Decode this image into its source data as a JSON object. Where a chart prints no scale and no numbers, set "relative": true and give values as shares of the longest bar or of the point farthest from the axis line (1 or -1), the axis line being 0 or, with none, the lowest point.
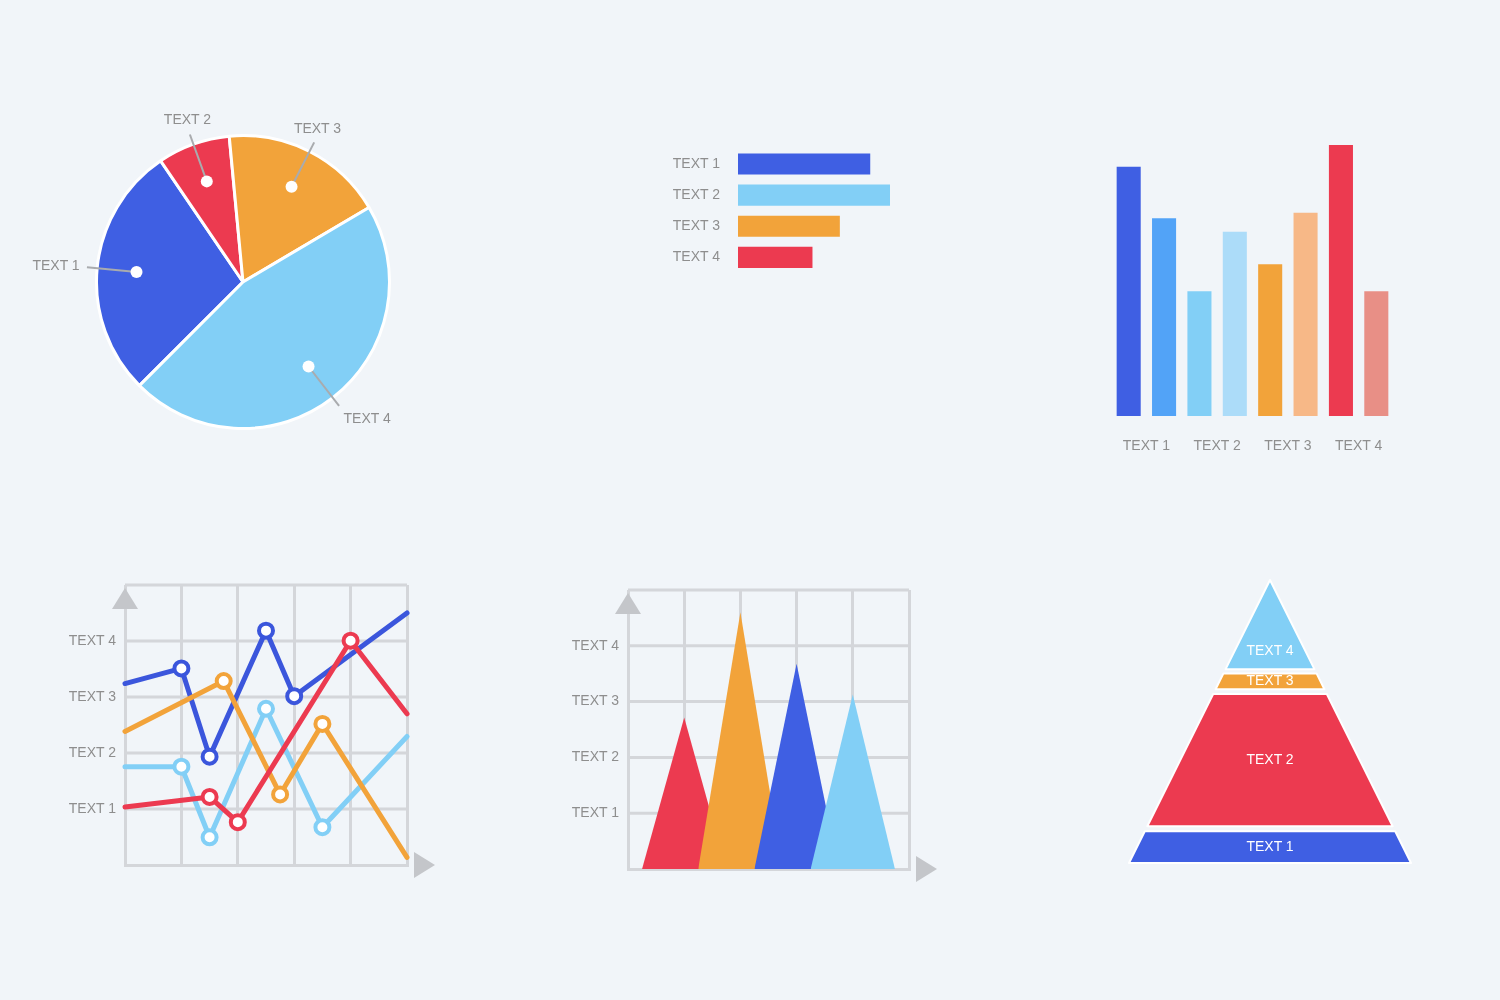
{
  "chart_data": [
    {
      "type": "pie",
      "categories": [
        "TEXT 1",
        "TEXT 2",
        "TEXT 3",
        "TEXT 4"
      ],
      "values": [
        28,
        8,
        18,
        46
      ],
      "colors": [
        "#3f5fe3",
        "#ec3a50",
        "#f2a33a",
        "#82cff6"
      ]
    },
    {
      "type": "bar",
      "orientation": "horizontal",
      "relative": true,
      "categories": [
        "TEXT 1",
        "TEXT 2",
        "TEXT 3",
        "TEXT 4"
      ],
      "values": [
        0.87,
        1,
        0.67,
        0.49
      ],
      "colors": [
        "#3f5fe3",
        "#82cff6",
        "#f2a33a",
        "#ec3a50"
      ]
    },
    {
      "type": "bar",
      "relative": true,
      "categories": [
        "TEXT 1",
        "TEXT 2",
        "TEXT 3",
        "TEXT 4"
      ],
      "series": [
        {
          "values": [
            0.92,
            0.46,
            0.56,
            1
          ],
          "colors": [
            "#3f5fe3",
            "#82cff6",
            "#f2a33a",
            "#ec3a50"
          ]
        },
        {
          "values": [
            0.73,
            0.68,
            0.75,
            0.46
          ],
          "colors": [
            "#52a3f7",
            "#acdcf9",
            "#f7b887",
            "#e88f86"
          ]
        }
      ]
    },
    {
      "type": "line",
      "relative": true,
      "categories": [
        null,
        null,
        null,
        null,
        null,
        null,
        null,
        null,
        null,
        null,
        null,
        null,
        null,
        null,
        null,
        null,
        null,
        null,
        null,
        null,
        null
      ],
      "annotations": [
        "TEXT 1",
        "TEXT 2",
        "TEXT 3",
        "TEXT 4"
      ],
      "tick_labels": false,
      "grid": true,
      "marker": "circle",
      "series": [
        {
          "color": "#3b56dc",
          "values": [
            0.72,
            null,
            null,
            null,
            0.78,
            null,
            0.43,
            null,
            null,
            null,
            0.93,
            null,
            0.67,
            null,
            null,
            null,
            null,
            null,
            null,
            null,
            1
          ]
        },
        {
          "color": "#82cff6",
          "values": [
            0.39,
            null,
            null,
            null,
            0.39,
            null,
            0.11,
            null,
            null,
            null,
            0.62,
            null,
            null,
            null,
            0.15,
            null,
            null,
            null,
            null,
            null,
            0.51
          ]
        },
        {
          "color": "#f2a33a",
          "values": [
            0.53,
            null,
            null,
            null,
            null,
            null,
            null,
            0.73,
            null,
            null,
            null,
            0.28,
            null,
            null,
            0.56,
            null,
            null,
            null,
            null,
            null,
            0.03
          ]
        },
        {
          "color": "#ec3a50",
          "values": [
            0.23,
            null,
            null,
            null,
            null,
            null,
            0.27,
            null,
            0.17,
            null,
            null,
            null,
            null,
            null,
            null,
            null,
            0.89,
            null,
            null,
            null,
            0.6
          ]
        }
      ]
    },
    {
      "type": "area",
      "relative": true,
      "categories": [
        null,
        null,
        null,
        null,
        null,
        null,
        null,
        null,
        null,
        null,
        null,
        null,
        null,
        null,
        null,
        null,
        null,
        null,
        null,
        null,
        null
      ],
      "annotations": [
        "TEXT 1",
        "TEXT 2",
        "TEXT 3",
        "TEXT 4"
      ],
      "tick_labels": false,
      "grid": true,
      "series": [
        {
          "color": "#ec3a50",
          "values": [
            null,
            0,
            null,
            null,
            0.59,
            null,
            null,
            0,
            null,
            null,
            null,
            null,
            null,
            null,
            null,
            null,
            null,
            null,
            null,
            null,
            null
          ]
        },
        {
          "color": "#f2a33a",
          "values": [
            null,
            null,
            null,
            null,
            null,
            0,
            null,
            null,
            1,
            null,
            null,
            0,
            null,
            null,
            null,
            null,
            null,
            null,
            null,
            null,
            null
          ]
        },
        {
          "color": "#3f5fe3",
          "values": [
            null,
            null,
            null,
            null,
            null,
            null,
            null,
            null,
            null,
            0,
            null,
            null,
            0.8,
            null,
            null,
            0,
            null,
            null,
            null,
            null,
            null
          ]
        },
        {
          "color": "#82cff6",
          "values": [
            null,
            null,
            null,
            null,
            null,
            null,
            null,
            null,
            null,
            null,
            null,
            null,
            null,
            0,
            null,
            null,
            0.68,
            null,
            null,
            0,
            null
          ]
        }
      ]
    },
    {
      "type": "other",
      "categories": [
        "TEXT 4",
        "TEXT 3",
        "TEXT 2",
        "TEXT 1"
      ],
      "colors": [
        "#82cff6",
        "#f2a33a",
        "#ec3a50",
        "#3f5fe3"
      ]
    }
  ]
}
